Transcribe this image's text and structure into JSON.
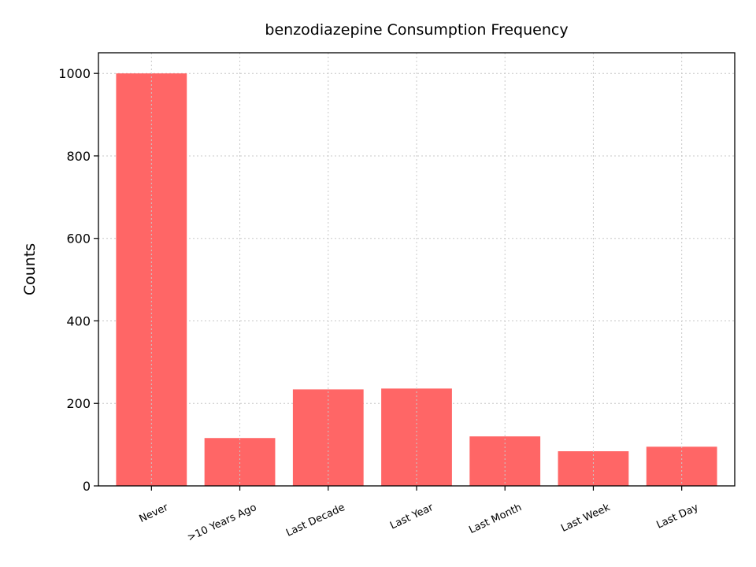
{
  "chart_data": {
    "type": "bar",
    "title": "benzodiazepine Consumption Frequency",
    "xlabel": "",
    "ylabel": "Counts",
    "categories": [
      "Never",
      ">10 Years Ago",
      "Last Decade",
      "Last Year",
      "Last Month",
      "Last Week",
      "Last Day"
    ],
    "values": [
      1000,
      116,
      234,
      236,
      120,
      84,
      95
    ],
    "ylim": [
      0,
      1050
    ],
    "yticks": [
      0,
      200,
      400,
      600,
      800,
      1000
    ],
    "grid": true,
    "bar_color": "#ff6666"
  }
}
